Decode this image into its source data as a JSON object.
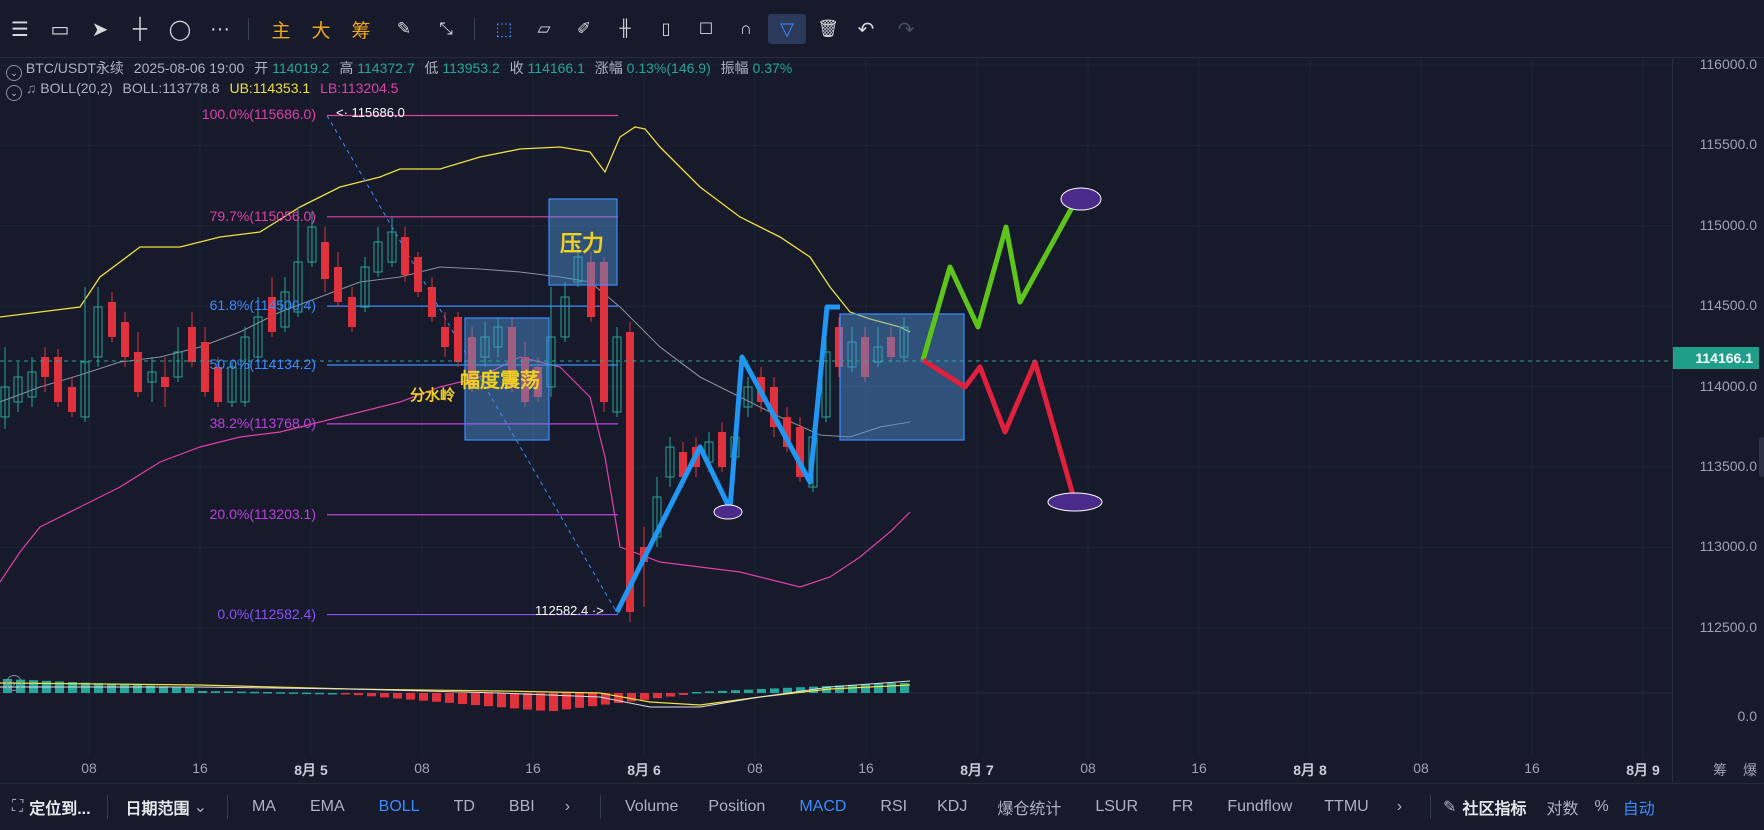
{
  "toolbar": {
    "indicators_cn": [
      "主",
      "大",
      "筹"
    ]
  },
  "header": {
    "symbol": "BTC/USDT永续",
    "datetime": "2025-08-06 19:00",
    "open_label": "开",
    "open": "114019.2",
    "high_label": "高",
    "high": "114372.7",
    "low_label": "低",
    "low": "113953.2",
    "close_label": "收",
    "close": "114166.1",
    "change_label": "涨幅",
    "change": "0.13%(146.9)",
    "amp_label": "振幅",
    "amp": "0.37%",
    "boll_name": "BOLL(20,2)",
    "boll_mid": "BOLL:113778.8",
    "boll_ub": "UB:114353.1",
    "boll_lb": "LB:113204.5"
  },
  "fib": [
    {
      "label": "100.0%(115686.0)",
      "price": 115686.0,
      "color": "#e040a8"
    },
    {
      "label": "79.7%(115056.0)",
      "price": 115056.0,
      "color": "#e040a8"
    },
    {
      "label": "61.8%(114500.4)",
      "price": 114500.4,
      "color": "#3d8bff"
    },
    {
      "label": "50.0%(114134.2)",
      "price": 114134.2,
      "color": "#3d8bff"
    },
    {
      "label": "38.2%(113768.0)",
      "price": 113768.0,
      "color": "#c040e0"
    },
    {
      "label": "20.0%(113203.1)",
      "price": 113203.1,
      "color": "#c040e0"
    },
    {
      "label": "0.0%(112582.4)",
      "price": 112582.4,
      "color": "#8a50ff"
    }
  ],
  "annotations": {
    "high_mark": "115686.0",
    "low_mark": "112582.4",
    "pressure": "压力",
    "range": "幅度震荡",
    "watershed": "分水岭"
  },
  "price_axis": {
    "ticks": [
      "116000.0",
      "115500.0",
      "115000.0",
      "114500.0",
      "114000.0",
      "113500.0",
      "113000.0",
      "112500.0"
    ],
    "current": "114166.1",
    "macd_zero": "0.0"
  },
  "time_axis": {
    "ticks": [
      {
        "t": "08",
        "day": false
      },
      {
        "t": "16",
        "day": false
      },
      {
        "t": "8月 5",
        "day": true
      },
      {
        "t": "08",
        "day": false
      },
      {
        "t": "16",
        "day": false
      },
      {
        "t": "8月 6",
        "day": true
      },
      {
        "t": "08",
        "day": false
      },
      {
        "t": "16",
        "day": false
      },
      {
        "t": "8月 7",
        "day": true
      },
      {
        "t": "08",
        "day": false
      },
      {
        "t": "16",
        "day": false
      },
      {
        "t": "8月 8",
        "day": true
      },
      {
        "t": "08",
        "day": false
      },
      {
        "t": "16",
        "day": false
      },
      {
        "t": "8月 9",
        "day": true
      }
    ],
    "right_icons": [
      "筹",
      "爆"
    ]
  },
  "bottom": {
    "locate": "定位到...",
    "date_range": "日期范围",
    "main_indicators": [
      "MA",
      "EMA",
      "BOLL",
      "TD",
      "BBI"
    ],
    "sub_indicators": [
      "Volume",
      "Position",
      "MACD",
      "RSI",
      "KDJ",
      "爆仓统计",
      "LSUR",
      "FR",
      "Fundflow",
      "TTMU"
    ],
    "community": "社区指标",
    "log": "对数",
    "percent": "%",
    "auto": "自动"
  },
  "colors": {
    "up": "#26a69a",
    "down": "#e0323c",
    "bg": "#161a2b",
    "accent": "#3d8bff"
  }
}
